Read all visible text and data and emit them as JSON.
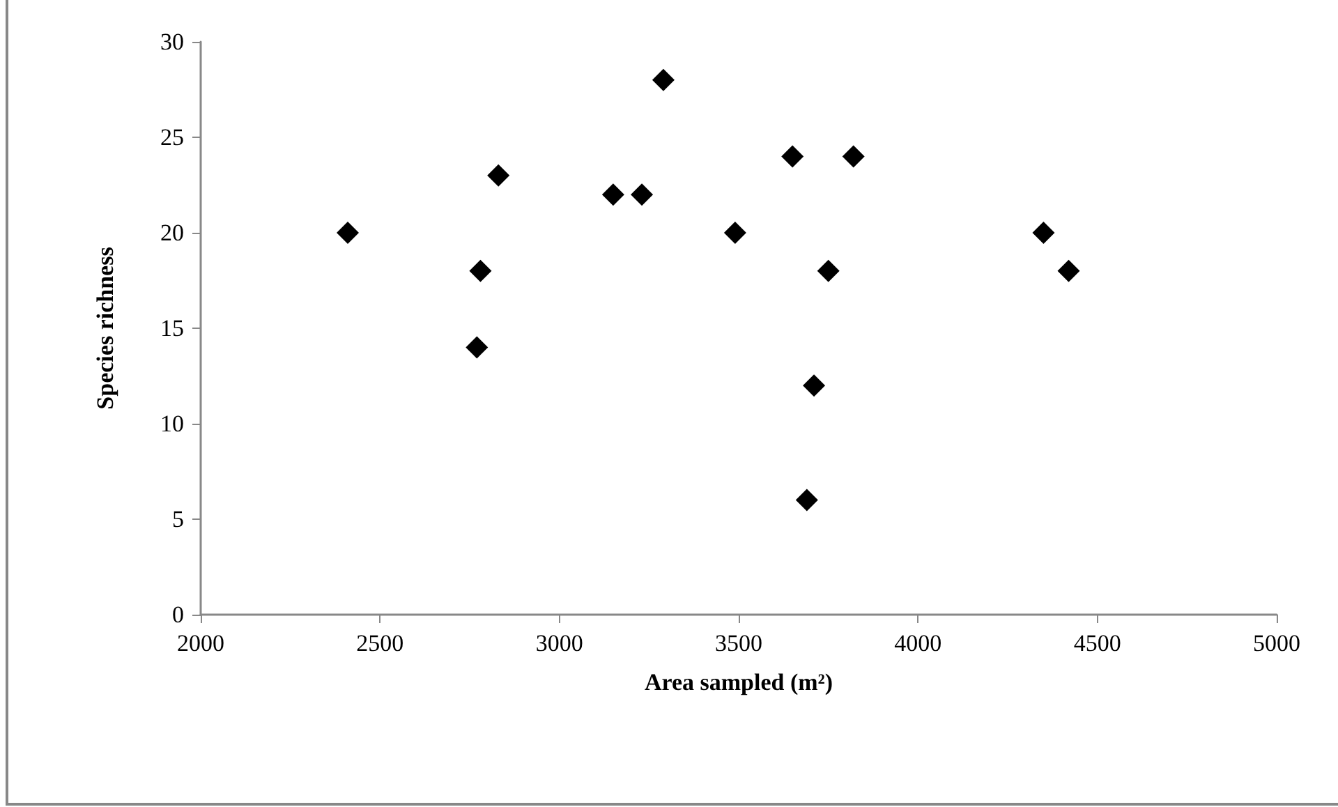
{
  "chart_data": {
    "type": "scatter",
    "xlabel": "Area sampled (m²)",
    "ylabel": "Species richness",
    "x": [
      2410,
      2770,
      2780,
      2830,
      3150,
      3230,
      3290,
      3490,
      3650,
      3820,
      3750,
      3710,
      3690,
      4350,
      4420
    ],
    "values": [
      20,
      14,
      18,
      23,
      22,
      22,
      28,
      20,
      24,
      24,
      18,
      12,
      6,
      20,
      18
    ],
    "color": "#000000",
    "marker": "diamond",
    "xlim": [
      2000,
      5000
    ],
    "xticks": [
      2000,
      2500,
      3000,
      3500,
      4000,
      4500,
      5000
    ],
    "ylim": [
      0,
      30
    ],
    "yticks": [
      0,
      5,
      10,
      15,
      20,
      25,
      30
    ],
    "grid": false
  }
}
